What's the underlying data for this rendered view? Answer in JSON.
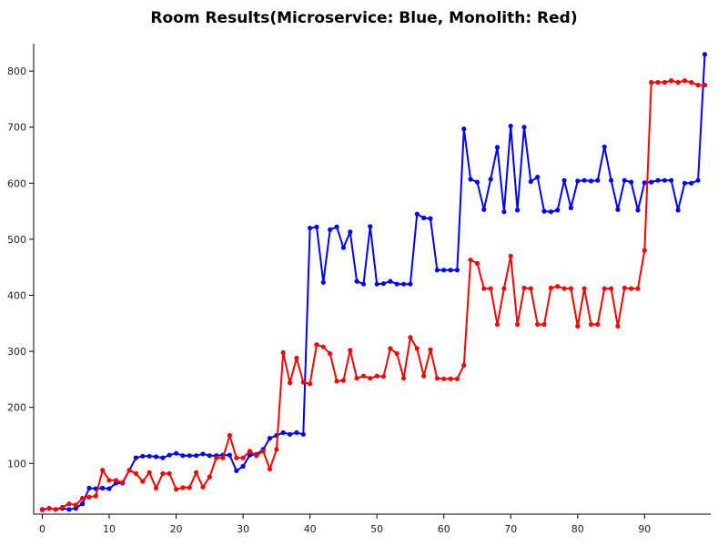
{
  "chart_data": {
    "type": "line",
    "title": "Room Results(Microservice: Blue, Monolith: Red)",
    "xlabel": "",
    "ylabel": "",
    "xlim": [
      0,
      99
    ],
    "ylim": [
      12,
      840
    ],
    "x_ticks": [
      0,
      10,
      20,
      30,
      40,
      50,
      60,
      70,
      80,
      90
    ],
    "y_ticks": [
      100,
      200,
      300,
      400,
      500,
      600,
      700,
      800
    ],
    "grid": false,
    "legend": "none",
    "series": [
      {
        "color": "#0000ff",
        "x": [
          0,
          1,
          2,
          3,
          4,
          5,
          6,
          7,
          8,
          9,
          10,
          11,
          12,
          13,
          14,
          15,
          16,
          17,
          18,
          19,
          20,
          21,
          22,
          23,
          24,
          25,
          26,
          27,
          28,
          29,
          30,
          31,
          32,
          33,
          34,
          35,
          36,
          37,
          38,
          39,
          40,
          41,
          42,
          43,
          44,
          45,
          46,
          47,
          48,
          49,
          50,
          51,
          52,
          53,
          54,
          55,
          56,
          57,
          58,
          59,
          60,
          61,
          62,
          63,
          64,
          65,
          66,
          67,
          68,
          69,
          70,
          71,
          72,
          73,
          74,
          75,
          76,
          77,
          78,
          79,
          80,
          81,
          82,
          83,
          84,
          85,
          86,
          87,
          88,
          89,
          90,
          91,
          92,
          93,
          94,
          95,
          96,
          97,
          98,
          99
        ],
        "y": [
          18,
          20,
          18,
          20,
          18,
          20,
          28,
          56,
          55,
          56,
          55,
          65,
          65,
          88,
          110,
          113,
          113,
          112,
          110,
          115,
          118,
          114,
          114,
          114,
          117,
          114,
          114,
          115,
          115,
          87,
          95,
          115,
          116,
          125,
          145,
          150,
          155,
          152,
          155,
          152,
          520,
          522,
          423,
          517,
          522,
          485,
          513,
          425,
          420,
          523,
          420,
          421,
          425,
          420,
          420,
          420,
          545,
          538,
          537,
          445,
          445,
          445,
          445,
          697,
          607,
          602,
          553,
          607,
          664,
          549,
          702,
          552,
          700,
          603,
          611,
          550,
          549,
          552,
          605,
          556,
          604,
          605,
          604,
          605,
          665,
          605,
          553,
          605,
          602,
          552,
          601,
          602,
          605,
          605,
          605,
          552,
          600,
          600,
          605,
          830
        ]
      },
      {
        "color": "#ff0000",
        "x": [
          0,
          1,
          2,
          3,
          4,
          5,
          6,
          7,
          8,
          9,
          10,
          11,
          12,
          13,
          14,
          15,
          16,
          17,
          18,
          19,
          20,
          21,
          22,
          23,
          24,
          25,
          26,
          27,
          28,
          29,
          30,
          31,
          32,
          33,
          34,
          35,
          36,
          37,
          38,
          39,
          40,
          41,
          42,
          43,
          44,
          45,
          46,
          47,
          48,
          49,
          50,
          51,
          52,
          53,
          54,
          55,
          56,
          57,
          58,
          59,
          60,
          61,
          62,
          63,
          64,
          65,
          66,
          67,
          68,
          69,
          70,
          71,
          72,
          73,
          74,
          75,
          76,
          77,
          78,
          79,
          80,
          81,
          82,
          83,
          84,
          85,
          86,
          87,
          88,
          89,
          90,
          91,
          92,
          93,
          94,
          95,
          96,
          97,
          98,
          99
        ],
        "y": [
          17,
          20,
          18,
          22,
          28,
          26,
          38,
          40,
          42,
          88,
          70,
          70,
          66,
          88,
          82,
          68,
          84,
          56,
          82,
          82,
          54,
          57,
          57,
          84,
          58,
          76,
          110,
          110,
          150,
          110,
          110,
          122,
          114,
          122,
          90,
          125,
          298,
          244,
          288,
          245,
          242,
          312,
          308,
          296,
          247,
          248,
          302,
          252,
          256,
          252,
          256,
          255,
          305,
          296,
          252,
          325,
          305,
          256,
          303,
          252,
          251,
          251,
          251,
          275,
          463,
          457,
          412,
          412,
          348,
          412,
          470,
          348,
          413,
          412,
          348,
          348,
          413,
          416,
          412,
          412,
          345,
          412,
          348,
          348,
          412,
          412,
          345,
          413,
          412,
          412,
          480,
          780,
          780,
          780,
          783,
          780,
          783,
          780,
          775,
          775
        ]
      }
    ]
  }
}
